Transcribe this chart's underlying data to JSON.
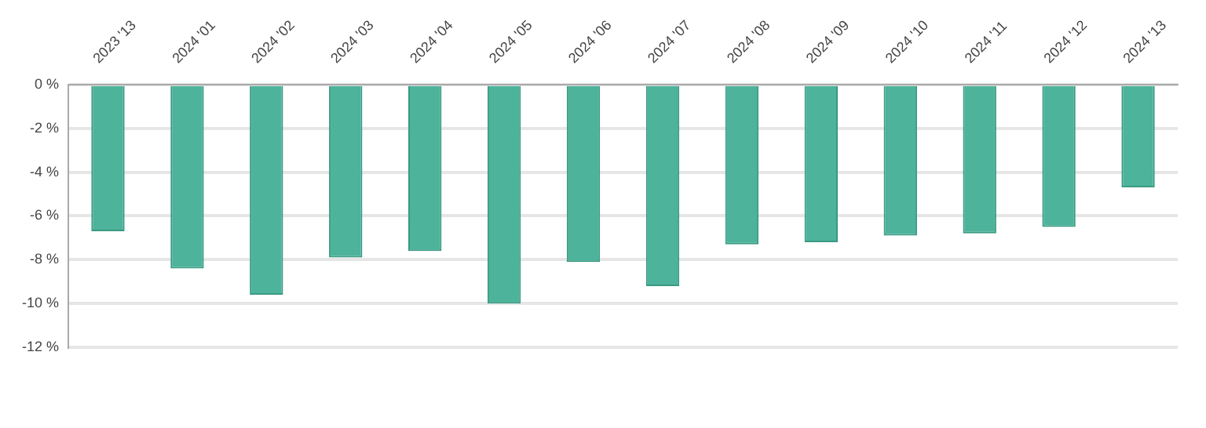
{
  "chart_data": {
    "type": "bar",
    "categories": [
      "2023 '13",
      "2024 '01",
      "2024 '02",
      "2024 '03",
      "2024 '04",
      "2024 '05",
      "2024 '06",
      "2024 '07",
      "2024 '08",
      "2024 '09",
      "2024 '10",
      "2024 '11",
      "2024 '12",
      "2024 '13"
    ],
    "values": [
      -6.7,
      -8.4,
      -9.6,
      -7.9,
      -7.6,
      -10.0,
      -8.1,
      -9.2,
      -7.3,
      -7.2,
      -6.9,
      -6.8,
      -6.5,
      -4.7
    ],
    "color": "#4db39b",
    "ylim": [
      -12,
      0
    ],
    "yticks": [
      {
        "value": 0,
        "label": "0 %"
      },
      {
        "value": -2,
        "label": "-2 %"
      },
      {
        "value": -4,
        "label": "-4 %"
      },
      {
        "value": -6,
        "label": "-6 %"
      },
      {
        "value": -8,
        "label": "-8 %"
      },
      {
        "value": -10,
        "label": "-10 %"
      },
      {
        "value": -12,
        "label": "-12 %"
      }
    ],
    "grid": "y",
    "legend": false
  }
}
